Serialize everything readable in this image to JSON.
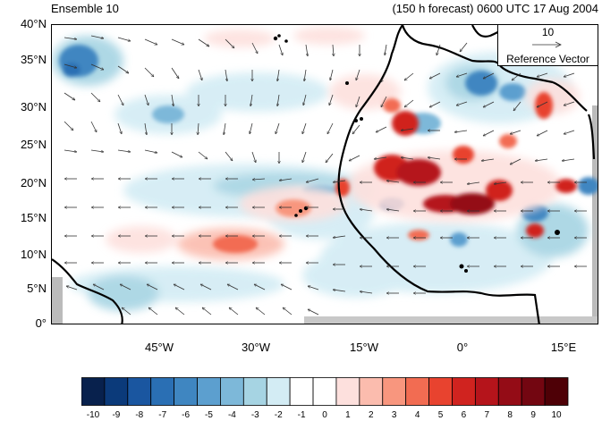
{
  "header": {
    "left_title": "Ensemble 10",
    "right_title": "(150 h forecast) 0600 UTC 17 Aug 2004"
  },
  "map": {
    "lon_range": [
      -57,
      20
    ],
    "lat_range": [
      0,
      40
    ],
    "y_labels": [
      "40°N",
      "35°N",
      "30°N",
      "25°N",
      "20°N",
      "15°N",
      "10°N",
      "5°N",
      "0°"
    ],
    "x_labels": [
      "45°W",
      "30°W",
      "15°W",
      "0°",
      "15°E"
    ],
    "field_colors_note": "diverging blue-red anomaly field with wind vectors"
  },
  "reference_vector": {
    "value": "10",
    "label": "Reference Vector"
  },
  "colorbar": {
    "labels": [
      "-10",
      "-9",
      "-8",
      "-7",
      "-6",
      "-5",
      "-4",
      "-3",
      "-2",
      "-1",
      "0",
      "1",
      "2",
      "3",
      "4",
      "5",
      "6",
      "7",
      "8",
      "9",
      "10"
    ],
    "colors": [
      "#08214d",
      "#0b3a7a",
      "#1a56a0",
      "#2a6fb4",
      "#3f86c1",
      "#5c9fcf",
      "#7db8d9",
      "#a6d4e3",
      "#d3ecf4",
      "#ffffff",
      "#ffffff",
      "#fde0dd",
      "#fbbcae",
      "#f8967e",
      "#f26c52",
      "#e8432f",
      "#d0231f",
      "#b5141b",
      "#940c16",
      "#730611",
      "#4e0006"
    ]
  }
}
